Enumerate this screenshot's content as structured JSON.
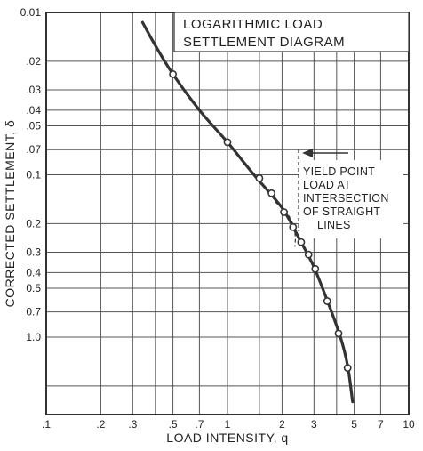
{
  "chart_data": {
    "type": "line",
    "title": "LOGARITHMIC LOAD SETTLEMENT DIAGRAM",
    "title_lines": [
      "LOGARITHMIC LOAD",
      "SETTLEMENT DIAGRAM"
    ],
    "xlabel": "LOAD INTENSITY, q",
    "ylabel": "CORRECTED SETTLEMENT, δ",
    "x_scale": "log",
    "y_scale": "log",
    "y_inverted": true,
    "xlim": [
      0.1,
      10
    ],
    "ylim": [
      0.01,
      3
    ],
    "grid": true,
    "x_ticks": [
      {
        "v": 0.1,
        "label": ".1"
      },
      {
        "v": 0.2,
        "label": ".2"
      },
      {
        "v": 0.3,
        "label": ".3"
      },
      {
        "v": 0.5,
        "label": ".5"
      },
      {
        "v": 0.7,
        "label": ".7"
      },
      {
        "v": 1,
        "label": "1"
      },
      {
        "v": 2,
        "label": "2"
      },
      {
        "v": 3,
        "label": "3"
      },
      {
        "v": 5,
        "label": "5"
      },
      {
        "v": 7,
        "label": "7"
      },
      {
        "v": 10,
        "label": "10"
      }
    ],
    "y_ticks": [
      {
        "v": 0.01,
        "label": "0.01"
      },
      {
        "v": 0.02,
        "label": ".02"
      },
      {
        "v": 0.03,
        "label": ".03"
      },
      {
        "v": 0.04,
        "label": ".04"
      },
      {
        "v": 0.05,
        "label": ".05"
      },
      {
        "v": 0.07,
        "label": ".07"
      },
      {
        "v": 0.1,
        "label": "0.1"
      },
      {
        "v": 0.2,
        "label": "0.2"
      },
      {
        "v": 0.3,
        "label": "0.3"
      },
      {
        "v": 0.4,
        "label": "0.4"
      },
      {
        "v": 0.5,
        "label": "0.5"
      },
      {
        "v": 0.7,
        "label": "0.7"
      },
      {
        "v": 1.0,
        "label": "1.0"
      }
    ],
    "x_grid": [
      0.2,
      0.3,
      0.4,
      0.5,
      0.7,
      1,
      1.5,
      2,
      3,
      4,
      5,
      7
    ],
    "y_grid": [
      0.02,
      0.03,
      0.04,
      0.05,
      0.07,
      0.1,
      0.2,
      0.3,
      0.4,
      0.5,
      0.7,
      1.0,
      2.0
    ],
    "curve": [
      {
        "x": 0.34,
        "y": 0.0115
      },
      {
        "x": 0.4,
        "y": 0.016
      },
      {
        "x": 0.5,
        "y": 0.024
      },
      {
        "x": 0.7,
        "y": 0.04
      },
      {
        "x": 1.0,
        "y": 0.063
      },
      {
        "x": 1.4,
        "y": 0.1
      },
      {
        "x": 2.0,
        "y": 0.16
      },
      {
        "x": 2.5,
        "y": 0.25
      },
      {
        "x": 3.0,
        "y": 0.37
      },
      {
        "x": 3.6,
        "y": 0.62
      },
      {
        "x": 4.2,
        "y": 1.0
      },
      {
        "x": 4.6,
        "y": 1.5
      },
      {
        "x": 4.9,
        "y": 2.5
      }
    ],
    "points": [
      {
        "x": 0.5,
        "y": 0.024
      },
      {
        "x": 1.0,
        "y": 0.063
      },
      {
        "x": 1.5,
        "y": 0.105
      },
      {
        "x": 1.75,
        "y": 0.13
      },
      {
        "x": 2.05,
        "y": 0.17
      },
      {
        "x": 2.3,
        "y": 0.21
      },
      {
        "x": 2.55,
        "y": 0.26
      },
      {
        "x": 2.8,
        "y": 0.31
      },
      {
        "x": 3.05,
        "y": 0.38
      },
      {
        "x": 3.55,
        "y": 0.6
      },
      {
        "x": 4.1,
        "y": 0.95
      },
      {
        "x": 4.6,
        "y": 1.55
      }
    ],
    "annotation": {
      "lines": [
        "YIELD POINT",
        "LOAD AT",
        "INTERSECTION",
        "OF STRAIGHT",
        "LINES"
      ],
      "target": {
        "x": 2.15,
        "y": 0.19
      }
    }
  }
}
